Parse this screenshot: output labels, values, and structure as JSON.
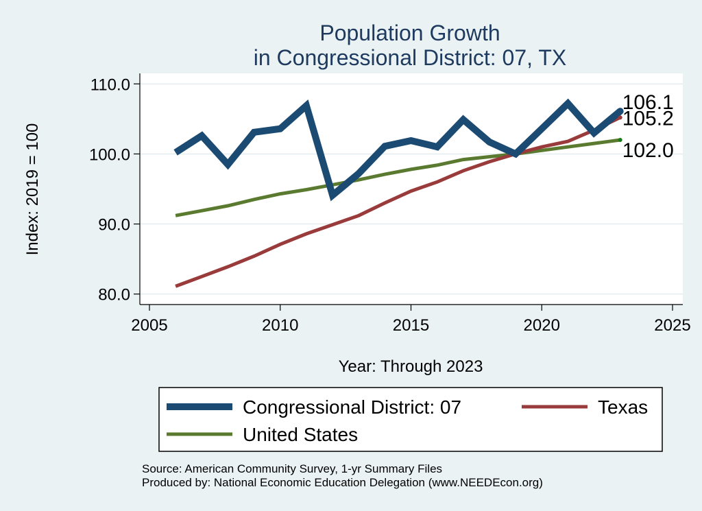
{
  "chart_data": {
    "type": "line",
    "title": [
      "Population Growth",
      "in Congressional District: 07, TX"
    ],
    "xlabel": "Year: Through 2023",
    "ylabel": "Index: 2019 = 100",
    "xlim": [
      2005,
      2025
    ],
    "ylim": [
      78.5,
      111.5
    ],
    "xticks": [
      2005,
      2010,
      2015,
      2020,
      2025
    ],
    "yticks": [
      80,
      90,
      100,
      110
    ],
    "ytick_labels": [
      "80.0",
      "90.0",
      "100.0",
      "110.0"
    ],
    "xtick_labels": [
      "2005",
      "2010",
      "2015",
      "2020",
      "2025"
    ],
    "x": [
      2006,
      2007,
      2008,
      2009,
      2010,
      2011,
      2012,
      2013,
      2014,
      2015,
      2016,
      2017,
      2018,
      2019,
      2020,
      2021,
      2022,
      2023
    ],
    "series": [
      {
        "name": "Congressional District: 07",
        "color": "#1b4a72",
        "values": [
          100.2,
          102.6,
          98.5,
          103.1,
          103.6,
          106.9,
          94.1,
          97.2,
          101.1,
          101.9,
          101.0,
          104.9,
          101.7,
          100.0,
          103.6,
          107.2,
          103.0,
          106.1
        ],
        "end_label": "106.1"
      },
      {
        "name": "Texas",
        "color": "#9a3b3b",
        "values": [
          81.1,
          82.5,
          83.9,
          85.4,
          87.1,
          88.6,
          89.9,
          91.2,
          93.0,
          94.7,
          96.0,
          97.6,
          98.9,
          100.0,
          101.0,
          101.8,
          103.4,
          105.2
        ],
        "end_label": "105.2"
      },
      {
        "name": "United States",
        "color": "#5a7a2f",
        "values": [
          91.2,
          91.9,
          92.6,
          93.5,
          94.3,
          94.9,
          95.6,
          96.3,
          97.1,
          97.8,
          98.4,
          99.2,
          99.6,
          100.0,
          100.5,
          101.0,
          101.5,
          102.0
        ],
        "end_label": "102.0"
      }
    ],
    "legend": {
      "position": "bottom",
      "entries": [
        "Congressional District: 07",
        "Texas",
        "United States"
      ]
    },
    "grid": true
  },
  "notes": {
    "source": "Source: American Community Survey, 1-yr Summary Files",
    "produced_by": "Produced by: National Economic Education Delegation (www.NEEDEcon.org)"
  },
  "colors": {
    "background": "#eaf2f3",
    "plot_background": "#ffffff",
    "title": "#1e3a5f",
    "grid": "#e3ecee"
  }
}
